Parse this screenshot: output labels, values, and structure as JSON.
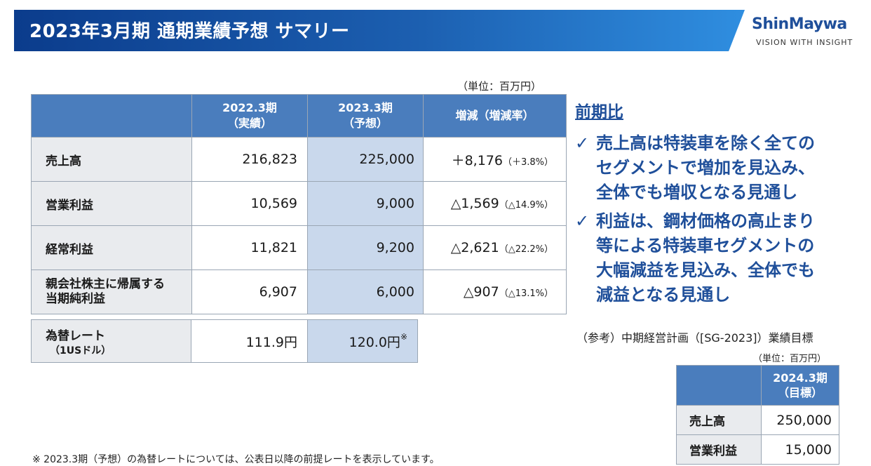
{
  "title": "2023年3月期 通期業績予想 サマリー",
  "logo": {
    "main": "ShinMaywa",
    "sub": "VISION WITH INSIGHT"
  },
  "unit": "（単位：百万円）",
  "main_table": {
    "headers": [
      {
        "line1": "2022.3期",
        "line2": "（実績）"
      },
      {
        "line1": "2023.3期",
        "line2": "（予想）"
      },
      {
        "line1": "増減（増減率）",
        "line2": ""
      }
    ],
    "rows": [
      {
        "label1": "売上高",
        "label2": "",
        "actual": "216,823",
        "forecast": "225,000",
        "diff": "＋8,176",
        "rate": "（＋3.8%）"
      },
      {
        "label1": "営業利益",
        "label2": "",
        "actual": "10,569",
        "forecast": "9,000",
        "diff": "△1,569",
        "rate": "（△14.9%）"
      },
      {
        "label1": "経常利益",
        "label2": "",
        "actual": "11,821",
        "forecast": "9,200",
        "diff": "△2,621",
        "rate": "（△22.2%）"
      },
      {
        "label1": "親会社株主に帰属する",
        "label2": "当期純利益",
        "actual": "6,907",
        "forecast": "6,000",
        "diff": "△907",
        "rate": "（△13.1%）"
      }
    ]
  },
  "fx": {
    "label1": "為替レート",
    "label2": "（1USドル）",
    "actual": "111.9円",
    "forecast": "120.0円",
    "mark": "※"
  },
  "comparison": {
    "heading": "前期比",
    "check": "✓",
    "bullets": [
      [
        "売上高は特装車を除く全ての",
        "セグメントで増加を見込み、",
        "全体でも増収となる見通し"
      ],
      [
        "利益は、鋼材価格の高止まり",
        "等による特装車セグメントの",
        "大幅減益を見込み、全体でも",
        "減益となる見通し"
      ]
    ]
  },
  "reference": {
    "label": "（参考）中期経営計画（[SG-2023]）業績目標",
    "unit": "（単位：百万円）",
    "header_line1": "2024.3期",
    "header_line2": "（目標）",
    "rows": [
      {
        "label": "売上高",
        "value": "250,000"
      },
      {
        "label": "営業利益",
        "value": "15,000"
      }
    ]
  },
  "footnote": "※ 2023.3期（予想）の為替レートについては、公表日以降の前提レートを表示しています。"
}
